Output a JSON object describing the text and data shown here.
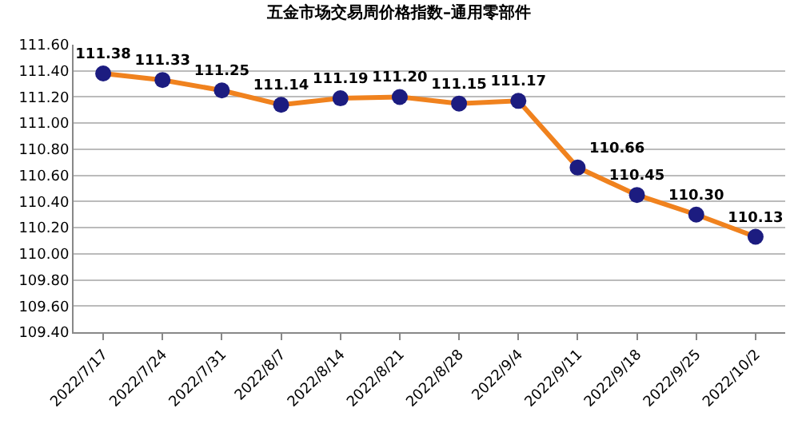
{
  "chart_data": {
    "type": "line",
    "title": "五金市场交易周价格指数–通用零部件",
    "categories": [
      "2022/7/17",
      "2022/7/24",
      "2022/7/31",
      "2022/8/7",
      "2022/8/14",
      "2022/8/21",
      "2022/8/28",
      "2022/9/4",
      "2022/9/11",
      "2022/9/18",
      "2022/9/25",
      "2022/10/2"
    ],
    "series": [
      {
        "color": "#f0821e",
        "values": [
          111.38,
          111.33,
          111.25,
          111.14,
          111.19,
          111.2,
          111.15,
          111.17,
          110.66,
          110.45,
          110.3,
          110.13
        ],
        "colors": [
          "#1c1c80",
          "#1c1c80",
          "#1c1c80",
          "#1c1c80",
          "#1c1c80",
          "#1c1c80",
          "#1c1c80",
          "#1c1c80",
          "#1c1c80",
          "#1c1c80",
          "#1c1c80",
          "#1c1c80"
        ],
        "value_labels": [
          "111.38",
          "111.33",
          "111.25",
          "111.14",
          "111.19",
          "111.20",
          "111.15",
          "111.17",
          "110.66",
          "110.45",
          "110.30",
          "110.13"
        ]
      }
    ],
    "marker": "circle",
    "ylim": [
      109.4,
      111.6
    ],
    "yticks": [
      {
        "value": 109.4,
        "label": "109.40"
      },
      {
        "value": 109.6,
        "label": "109.60"
      },
      {
        "value": 109.8,
        "label": "109.80"
      },
      {
        "value": 110.0,
        "label": "110.00"
      },
      {
        "value": 110.2,
        "label": "110.20"
      },
      {
        "value": 110.4,
        "label": "110.40"
      },
      {
        "value": 110.6,
        "label": "110.60"
      },
      {
        "value": 110.8,
        "label": "110.80"
      },
      {
        "value": 111.0,
        "label": "111.00"
      },
      {
        "value": 111.2,
        "label": "111.20"
      },
      {
        "value": 111.4,
        "label": "111.40"
      },
      {
        "value": 111.6,
        "label": "111.60"
      }
    ],
    "grid": "y"
  }
}
